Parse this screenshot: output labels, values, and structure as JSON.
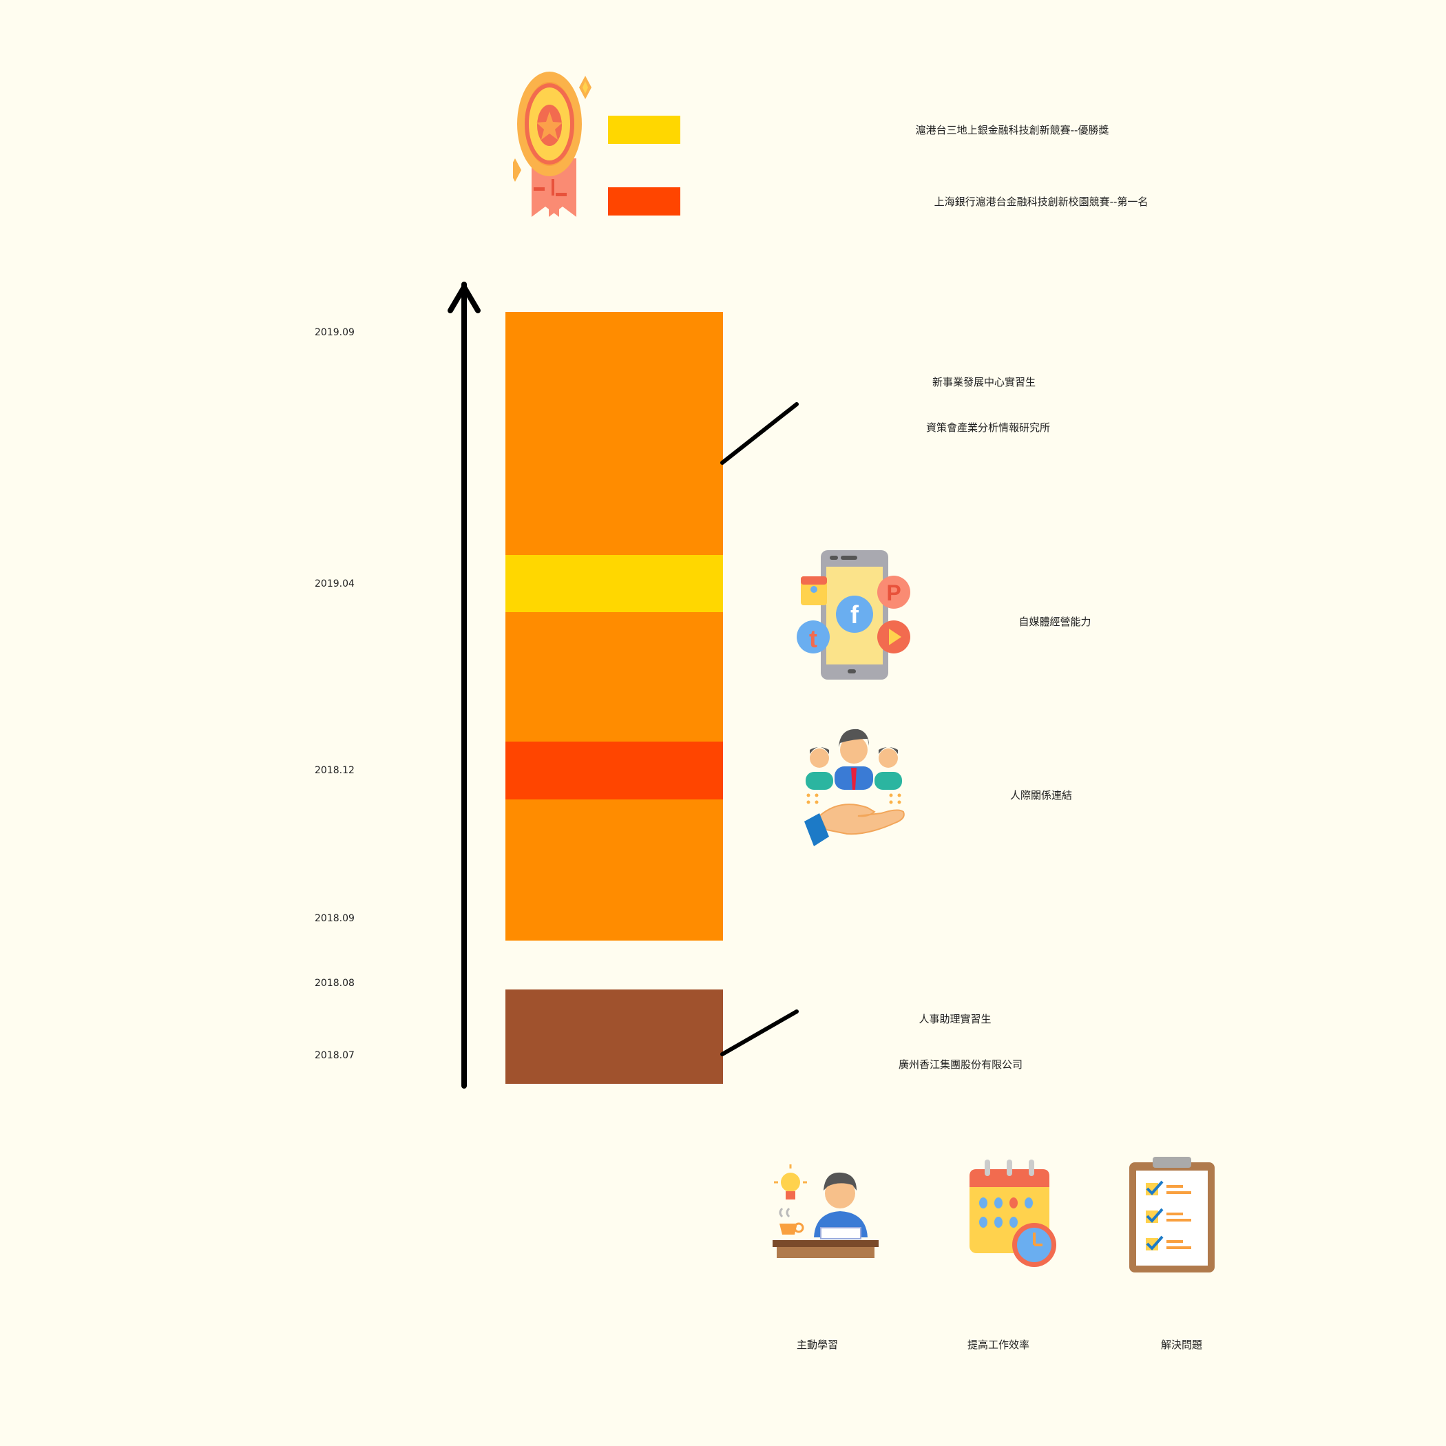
{
  "awards": [
    {
      "text": "滬港台三地上銀金融科技創新競賽--優勝獎",
      "color": "#ffd700"
    },
    {
      "text": "上海銀行滬港台金融科技創新校園競賽--第一名",
      "color": "#ff4500"
    }
  ],
  "timeline": {
    "dates": [
      "2019.09",
      "2019.04",
      "2018.12",
      "2018.09",
      "2018.08",
      "2018.07"
    ],
    "segment_colors": {
      "main": "#ff8c00",
      "highlight_yellow": "#ffd700",
      "highlight_red": "#ff4500",
      "first_job": "#a0522d"
    }
  },
  "jobs": [
    {
      "title": "新事業發展中心實習生",
      "company": "資策會產業分析情報研究所"
    },
    {
      "title": "人事助理實習生",
      "company": "廣州香江集團股份有限公司"
    }
  ],
  "skills": [
    {
      "label": "自媒體經營能力",
      "icon": "social-media-phone-icon"
    },
    {
      "label": "人際關係連結",
      "icon": "networking-hand-icon"
    }
  ],
  "abilities": [
    {
      "label": "主動學習",
      "icon": "study-person-icon"
    },
    {
      "label": "提高工作效率",
      "icon": "calendar-clock-icon"
    },
    {
      "label": "解決問題",
      "icon": "checklist-clipboard-icon"
    }
  ]
}
